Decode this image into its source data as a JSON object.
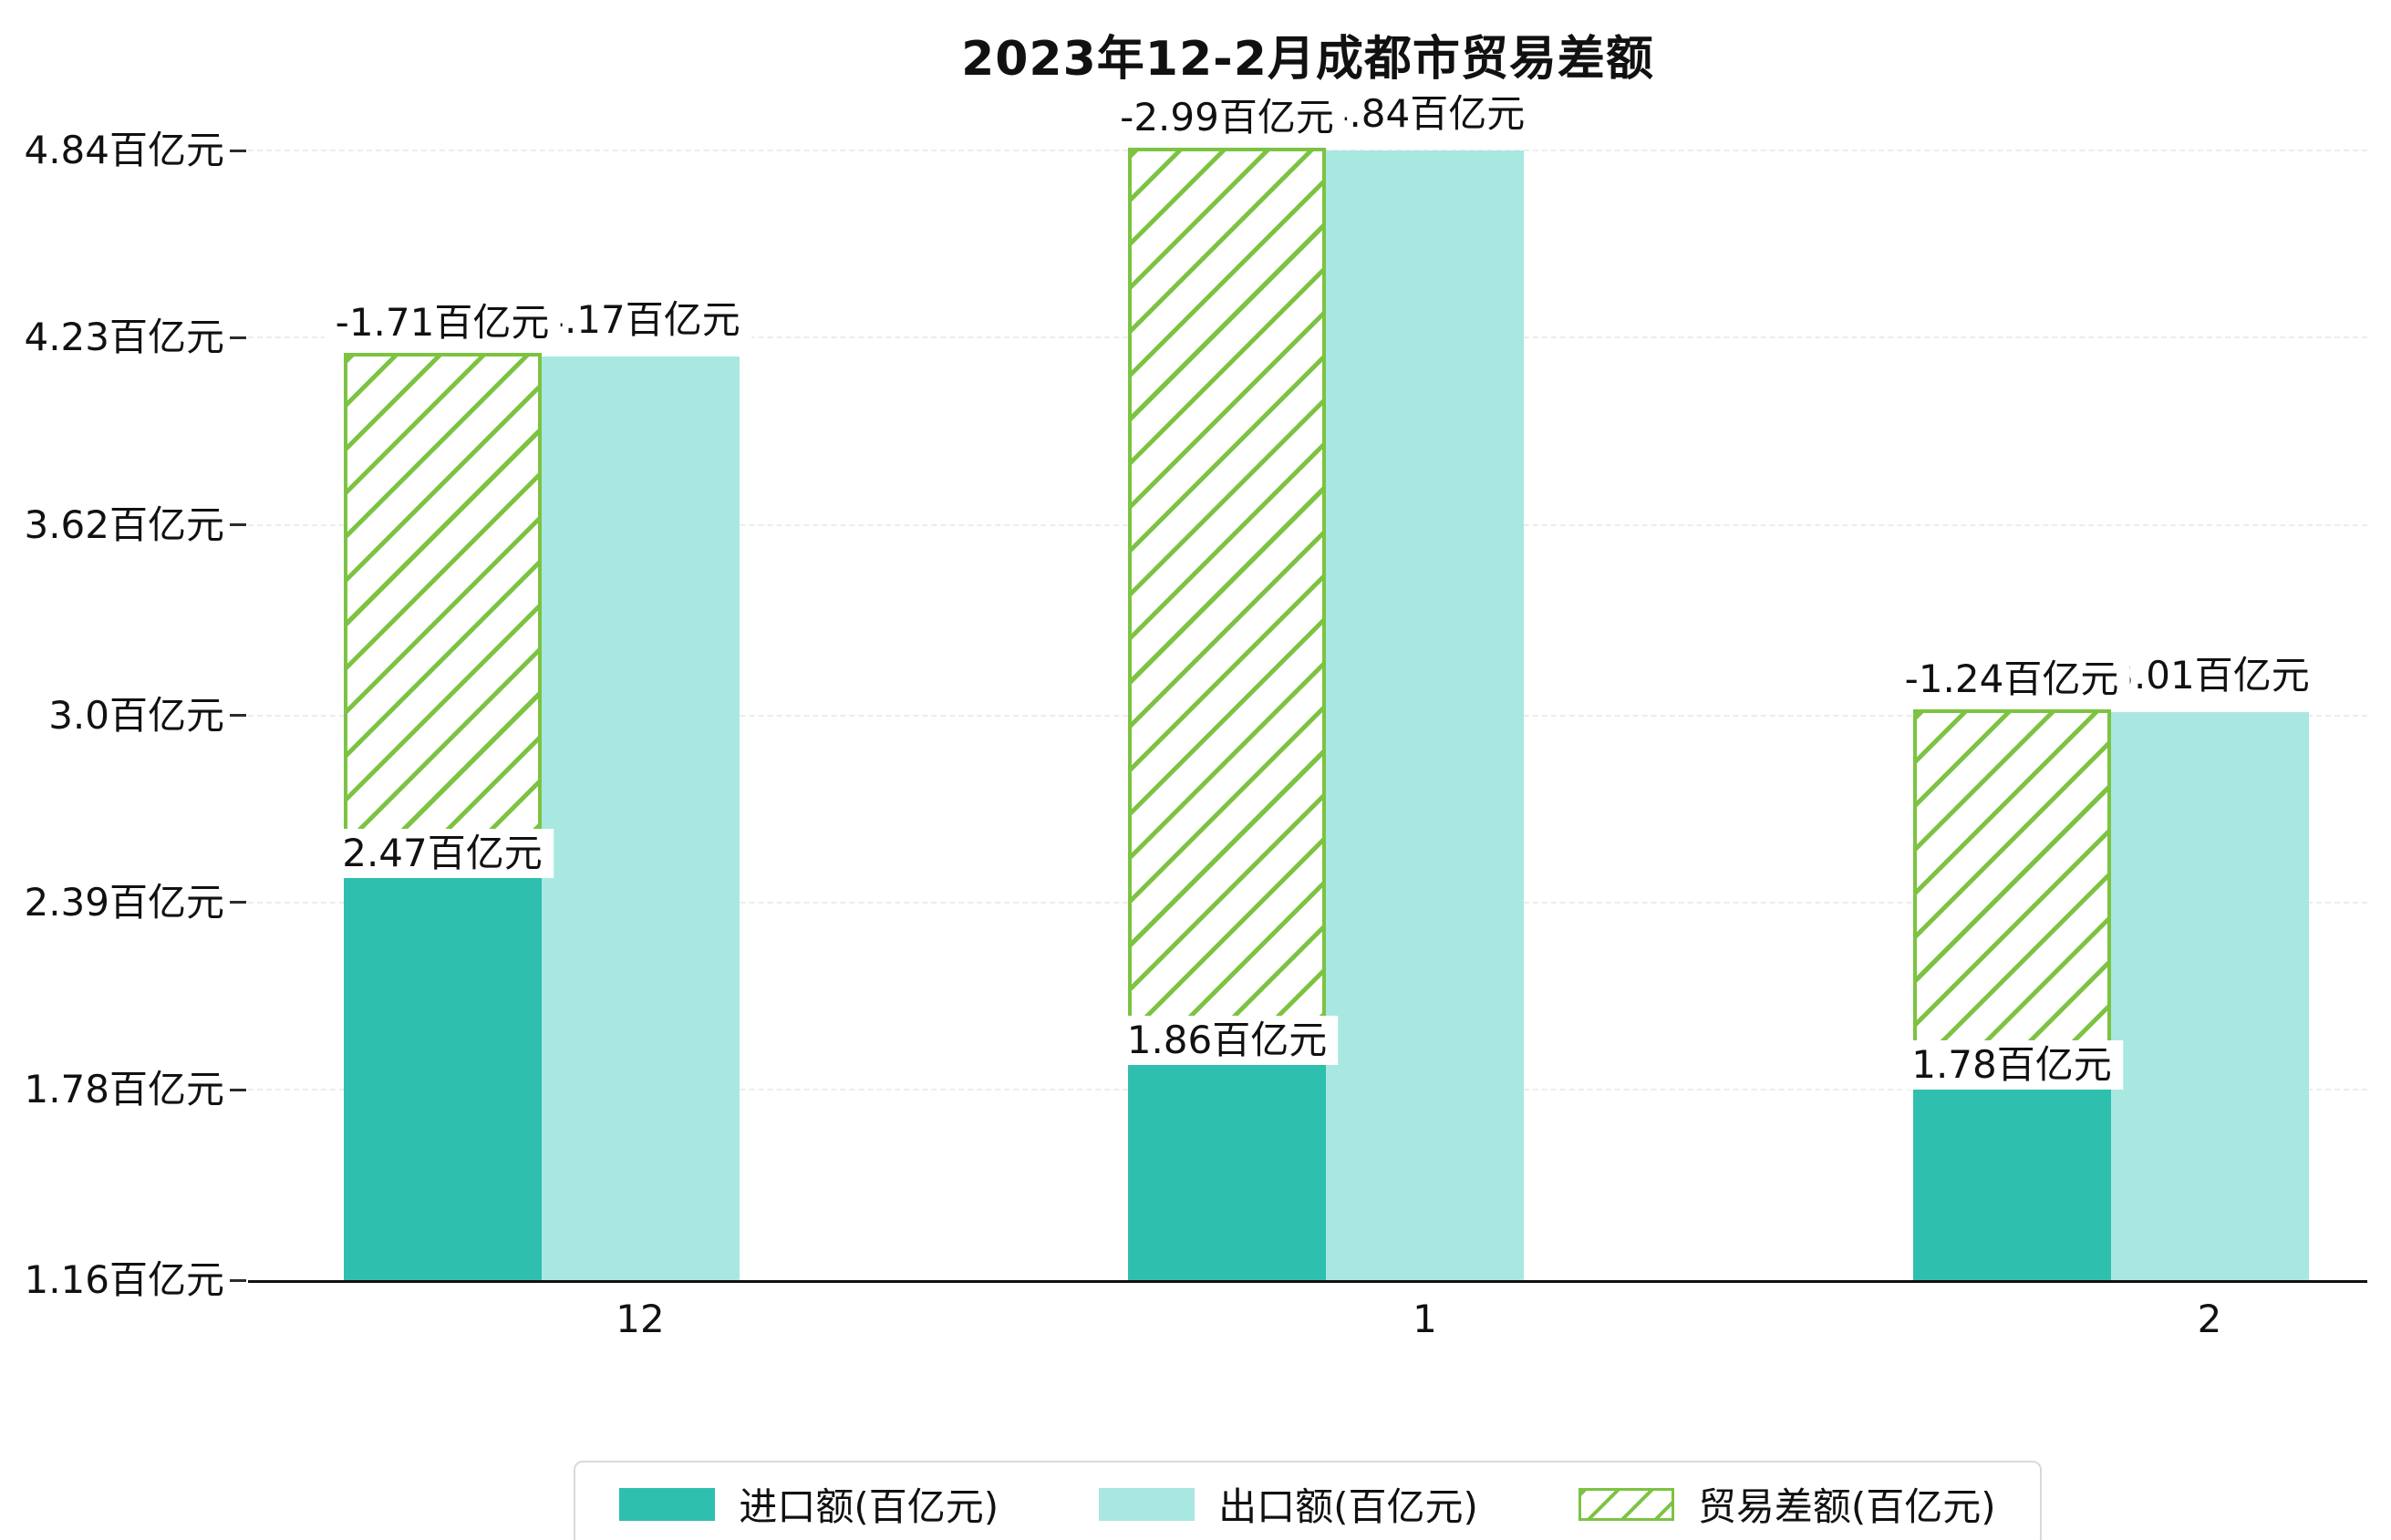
{
  "title": "2023年12-2月成都市贸易差额",
  "chart_data": {
    "type": "bar",
    "categories": [
      "12",
      "1",
      "2"
    ],
    "ylim": [
      1.16,
      4.84
    ],
    "grid": true,
    "legend_position": "bottom",
    "y_ticks": [
      {
        "value": 1.16,
        "label": "1.16百亿元"
      },
      {
        "value": 1.78,
        "label": "1.78百亿元"
      },
      {
        "value": 2.39,
        "label": "2.39百亿元"
      },
      {
        "value": 3.0,
        "label": "3.0百亿元"
      },
      {
        "value": 3.62,
        "label": "3.62百亿元"
      },
      {
        "value": 4.23,
        "label": "4.23百亿元"
      },
      {
        "value": 4.84,
        "label": "4.84百亿元"
      }
    ],
    "series": [
      {
        "name": "进口额(百亿元)",
        "role": "import",
        "style": "solid",
        "color": "#2fbfae",
        "values": [
          2.47,
          1.86,
          1.78
        ],
        "labels": [
          "2.47百亿元",
          "1.86百亿元",
          "1.78百亿元"
        ]
      },
      {
        "name": "出口额(百亿元)",
        "role": "export",
        "style": "solid",
        "color": "#a8e8e1",
        "values": [
          4.17,
          4.84,
          3.01
        ],
        "labels": [
          "4.17百亿元",
          "4.84百亿元",
          "3.01百亿元"
        ]
      },
      {
        "name": "贸易差额(百亿元)",
        "role": "trade-balance",
        "style": "diagonal-hatch",
        "color": "#7cc342",
        "values": [
          -1.71,
          -2.99,
          -1.24
        ],
        "labels": [
          "-1.71百亿元",
          "-2.99百亿元",
          "-1.24百亿元"
        ]
      }
    ]
  }
}
